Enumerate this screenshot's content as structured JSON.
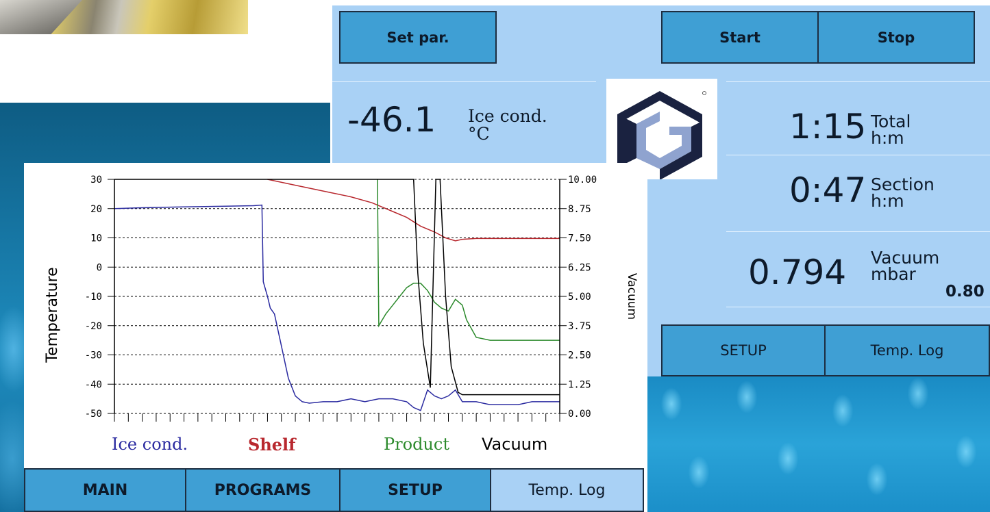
{
  "top_panel": {
    "buttons": {
      "set_par": "Set par.",
      "start": "Start",
      "stop": "Stop"
    },
    "ice_cond": {
      "value": "-46.1",
      "label": "Ice cond.",
      "unit": "°C"
    },
    "total": {
      "value": "1:15",
      "label": "Total",
      "unit": "h:m"
    },
    "section": {
      "value": "0:47",
      "label": "Section",
      "unit": "h:m"
    },
    "vacuum": {
      "value": "0.794",
      "label": "Vacuum",
      "unit": "mbar",
      "setpoint": "0.80"
    },
    "bottom_tabs": {
      "setup": "SETUP",
      "temp_log": "Temp. Log"
    }
  },
  "chart_panel": {
    "legend": {
      "ice_cond": "Ice cond.",
      "shelf": "Shelf",
      "product": "Product",
      "vacuum": "Vacuum"
    },
    "navbar": {
      "main": "MAIN",
      "programs": "PROGRAMS",
      "setup": "SETUP",
      "temp_log": "Temp. Log"
    }
  },
  "colors": {
    "panel_bg": "#a9d1f5",
    "button_bg": "#3f9fd4",
    "ice_cond": "#2a2aa0",
    "shelf": "#b8282e",
    "product": "#2c8a2c",
    "vacuum": "#000000"
  },
  "chart_data": {
    "type": "line",
    "ylabel": "Temperature",
    "y2label": "Vacuum",
    "ylim": [
      -50,
      30
    ],
    "y2lim": [
      0,
      10
    ],
    "yticks": [
      "30",
      "20",
      "10",
      "0",
      "-10",
      "-20",
      "-30",
      "-40",
      "-50"
    ],
    "y2ticks": [
      "10.00",
      "8.75",
      "7.50",
      "6.25",
      "5.00",
      "3.75",
      "2.50",
      "1.25",
      "0.00"
    ],
    "xlim": [
      0,
      32
    ],
    "grid": true,
    "series": [
      {
        "name": "Ice cond.",
        "axis": "left",
        "points": [
          [
            0,
            20
          ],
          [
            2,
            20.3
          ],
          [
            5,
            20.6
          ],
          [
            8,
            20.8
          ],
          [
            10,
            21
          ],
          [
            10.6,
            21.2
          ],
          [
            10.7,
            -5
          ],
          [
            11,
            -10
          ],
          [
            11.2,
            -14
          ],
          [
            11.5,
            -16
          ],
          [
            12,
            -27
          ],
          [
            12.5,
            -38
          ],
          [
            13,
            -44
          ],
          [
            13.5,
            -46
          ],
          [
            14,
            -46.5
          ],
          [
            15,
            -46
          ],
          [
            16,
            -46
          ],
          [
            17,
            -45
          ],
          [
            18,
            -46
          ],
          [
            19,
            -45
          ],
          [
            20,
            -45
          ],
          [
            21,
            -46
          ],
          [
            21.5,
            -48
          ],
          [
            22,
            -49
          ],
          [
            22.5,
            -42
          ],
          [
            23,
            -44
          ],
          [
            23.5,
            -45
          ],
          [
            24,
            -44
          ],
          [
            24.5,
            -42
          ],
          [
            25,
            -46
          ],
          [
            26,
            -46
          ],
          [
            27,
            -47
          ],
          [
            28,
            -47
          ],
          [
            29,
            -47
          ],
          [
            30,
            -46
          ],
          [
            31,
            -46
          ],
          [
            32,
            -46
          ]
        ]
      },
      {
        "name": "Shelf",
        "axis": "left",
        "points": [
          [
            11,
            30
          ],
          [
            13,
            28
          ],
          [
            15,
            26
          ],
          [
            17,
            24
          ],
          [
            18.5,
            22
          ],
          [
            20,
            19
          ],
          [
            21,
            17
          ],
          [
            22,
            14
          ],
          [
            23,
            12
          ],
          [
            23.8,
            10
          ],
          [
            24.5,
            9
          ],
          [
            25,
            9.5
          ],
          [
            26,
            9.8
          ],
          [
            28,
            9.8
          ],
          [
            30,
            9.8
          ],
          [
            32,
            9.8
          ]
        ]
      },
      {
        "name": "Product",
        "axis": "left",
        "points": [
          [
            18.9,
            30
          ],
          [
            19,
            -20
          ],
          [
            19.5,
            -16
          ],
          [
            20,
            -13
          ],
          [
            20.5,
            -10
          ],
          [
            21,
            -7
          ],
          [
            21.5,
            -5.5
          ],
          [
            22,
            -5.5
          ],
          [
            22.5,
            -8
          ],
          [
            23,
            -12
          ],
          [
            23.5,
            -14
          ],
          [
            24,
            -15
          ],
          [
            24.5,
            -11
          ],
          [
            25,
            -13
          ],
          [
            25.3,
            -18
          ],
          [
            26,
            -24
          ],
          [
            27,
            -25
          ],
          [
            28,
            -25
          ],
          [
            29,
            -25
          ],
          [
            30,
            -25
          ],
          [
            32,
            -25
          ]
        ]
      },
      {
        "name": "Vacuum",
        "axis": "right",
        "points": [
          [
            0,
            10
          ],
          [
            21.5,
            10
          ],
          [
            21.8,
            6
          ],
          [
            22.2,
            3
          ],
          [
            22.7,
            1.1
          ],
          [
            23.1,
            10
          ],
          [
            23.4,
            10
          ],
          [
            23.8,
            5
          ],
          [
            24.2,
            2
          ],
          [
            24.7,
            0.9
          ],
          [
            25,
            0.8
          ],
          [
            32,
            0.8
          ]
        ]
      }
    ]
  }
}
